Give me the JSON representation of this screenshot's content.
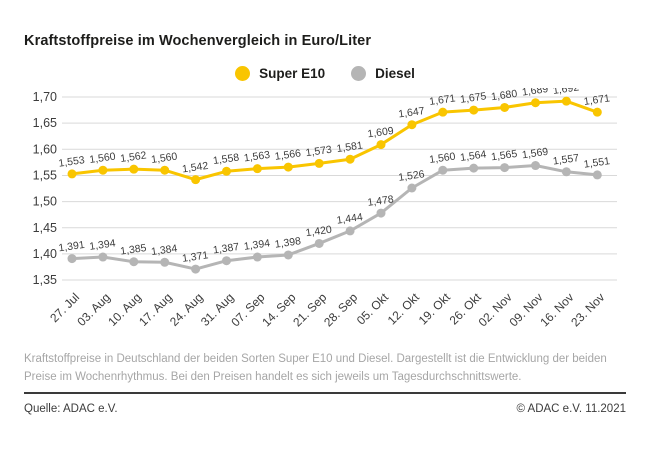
{
  "chart_data": {
    "type": "line",
    "title": "Kraftstoffpreise im Wochenvergleich in Euro/Liter",
    "unit": "Euro/Liter",
    "categories": [
      "27. Jul",
      "03. Aug",
      "10. Aug",
      "17. Aug",
      "24. Aug",
      "31. Aug",
      "07. Sep",
      "14. Sep",
      "21. Sep",
      "28. Sep",
      "05. Okt",
      "12. Okt",
      "19. Okt",
      "26. Okt",
      "02. Nov",
      "09. Nov",
      "16. Nov",
      "23. Nov"
    ],
    "series": [
      {
        "name": "Super E10",
        "color": "#f9c500",
        "values": [
          1.553,
          1.56,
          1.562,
          1.56,
          1.542,
          1.558,
          1.563,
          1.566,
          1.573,
          1.581,
          1.609,
          1.647,
          1.671,
          1.675,
          1.68,
          1.689,
          1.692,
          1.671
        ]
      },
      {
        "name": "Diesel",
        "color": "#b5b5b5",
        "values": [
          1.391,
          1.394,
          1.385,
          1.384,
          1.371,
          1.387,
          1.394,
          1.398,
          1.42,
          1.444,
          1.478,
          1.526,
          1.56,
          1.564,
          1.565,
          1.569,
          1.557,
          1.551
        ]
      }
    ],
    "ylim": [
      1.35,
      1.7
    ],
    "ytick_step": 0.05,
    "grid": "horizontal",
    "gridline_color": "#d9d9d9",
    "label_color": "#3c3c3c",
    "legend_position": "top-center",
    "decimal_separator": ","
  },
  "footer": {
    "description": "Kraftstoffpreise in Deutschland der beiden Sorten Super E10 und Diesel. Dargestellt ist die Entwicklung der beiden Preise im Wochenrhythmus. Bei den Preisen handelt es sich jeweils um Tagesdurchschnittswerte.",
    "source_left": "Quelle: ADAC e.V.",
    "source_right": "© ADAC e.V. 11.2021"
  }
}
